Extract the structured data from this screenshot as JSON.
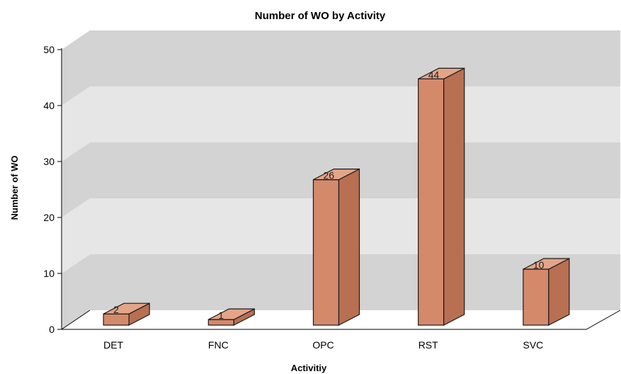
{
  "chart_data": {
    "type": "bar",
    "title": "Number of WO by Activity",
    "xlabel": "Activitiy",
    "ylabel": "Number of WO",
    "categories": [
      "DET",
      "FNC",
      "OPC",
      "RST",
      "SVC"
    ],
    "values": [
      2,
      1,
      26,
      44,
      10
    ],
    "ylim": [
      0,
      50
    ],
    "yticks": [
      0,
      10,
      20,
      30,
      40,
      50
    ],
    "three_d": true,
    "grid": true,
    "legend": "none",
    "colors": {
      "bar_front": "#d4896b",
      "bar_top": "#e3a587",
      "bar_side": "#b86f52",
      "bar_stroke": "#1a1a1a",
      "wall_band_dark": "#d3d3d3",
      "wall_band_light": "#e6e6e6",
      "floor": "#ffffff"
    }
  }
}
